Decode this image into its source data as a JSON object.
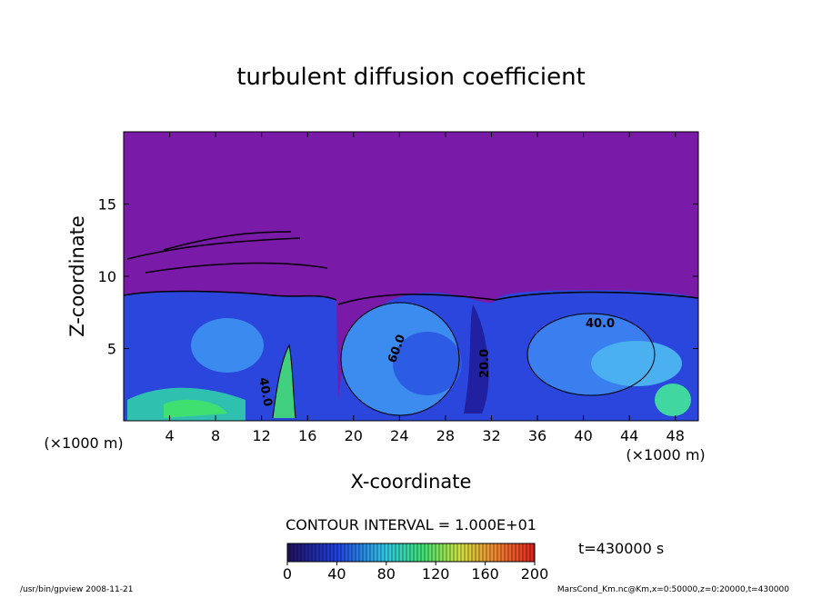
{
  "chart_data": {
    "type": "contour",
    "title": "turbulent diffusion coefficient",
    "xlabel": "X-coordinate",
    "ylabel": "Z-coordinate",
    "xunit": "(×1000 m)",
    "yunit": "(×1000 m)",
    "xlim": [
      0,
      50
    ],
    "ylim": [
      0,
      20
    ],
    "xticks": [
      4,
      8,
      12,
      16,
      20,
      24,
      28,
      32,
      36,
      40,
      44,
      48
    ],
    "yticks": [
      5,
      10,
      15
    ],
    "contour_interval": "CONTOUR INTERVAL = 1.000E+01",
    "contour_labels": [
      "60.0",
      "40.0",
      "20.0",
      "40.0"
    ],
    "clim": [
      0,
      200
    ],
    "cticks": [
      0,
      40,
      80,
      120,
      160,
      200
    ],
    "time_label": "t=430000 s",
    "footer_left": "/usr/bin/gpview   2008-11-21",
    "footer_right": "MarsCond_Km.nc@Km,x=0:50000,z=0:20000,t=430000"
  }
}
